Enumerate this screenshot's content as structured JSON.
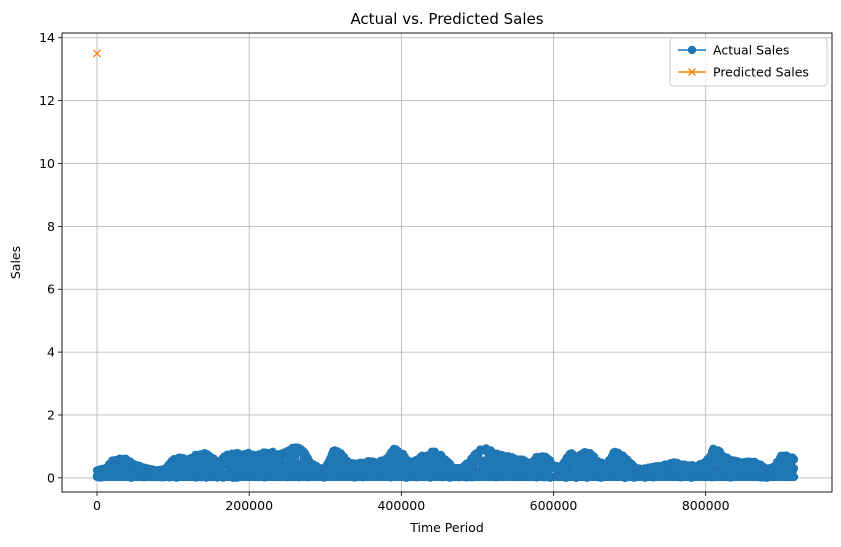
{
  "chart_data": {
    "type": "line",
    "title": "Actual vs. Predicted Sales",
    "xlabel": "Time Period",
    "ylabel": "Sales",
    "xlim": [
      -46000,
      966000
    ],
    "ylim": [
      -0.45,
      14.15
    ],
    "xticks": [
      0,
      200000,
      400000,
      600000,
      800000
    ],
    "xtick_labels": [
      "0",
      "200000",
      "400000",
      "600000",
      "800000"
    ],
    "yticks": [
      0,
      2,
      4,
      6,
      8,
      10,
      12,
      14
    ],
    "ytick_labels": [
      "0",
      "2",
      "4",
      "6",
      "8",
      "10",
      "12",
      "14"
    ],
    "grid": true,
    "legend_position": "top-right",
    "series": [
      {
        "name": "Actual Sales",
        "color": "#1f77b4",
        "marker": "circle",
        "x_range": [
          0,
          916000
        ],
        "envelope_x": [
          0,
          10000,
          20000,
          30000,
          40000,
          50000,
          60000,
          70000,
          80000,
          90000,
          100000,
          110000,
          120000,
          130000,
          140000,
          150000,
          160000,
          170000,
          180000,
          190000,
          200000,
          210000,
          220000,
          230000,
          240000,
          250000,
          260000,
          270000,
          280000,
          290000,
          300000,
          310000,
          320000,
          330000,
          340000,
          350000,
          360000,
          370000,
          380000,
          390000,
          400000,
          410000,
          420000,
          430000,
          440000,
          450000,
          460000,
          470000,
          480000,
          490000,
          500000,
          510000,
          520000,
          530000,
          540000,
          550000,
          560000,
          570000,
          580000,
          590000,
          600000,
          610000,
          620000,
          630000,
          640000,
          650000,
          660000,
          670000,
          680000,
          690000,
          700000,
          710000,
          720000,
          730000,
          740000,
          750000,
          760000,
          770000,
          780000,
          790000,
          800000,
          810000,
          820000,
          830000,
          840000,
          850000,
          860000,
          870000,
          880000,
          890000,
          900000,
          910000,
          916000
        ],
        "envelope_max": [
          0.25,
          0.3,
          0.55,
          0.65,
          0.6,
          0.45,
          0.35,
          0.3,
          0.25,
          0.3,
          0.6,
          0.65,
          0.6,
          0.75,
          0.8,
          0.7,
          0.5,
          0.75,
          0.8,
          0.8,
          0.8,
          0.7,
          0.9,
          0.85,
          0.75,
          0.85,
          1.0,
          0.95,
          0.5,
          0.35,
          0.3,
          0.9,
          0.85,
          0.5,
          0.45,
          0.5,
          0.55,
          0.5,
          0.65,
          0.95,
          0.85,
          0.5,
          0.6,
          0.75,
          0.85,
          0.8,
          0.55,
          0.3,
          0.35,
          0.55,
          0.9,
          0.95,
          0.85,
          0.75,
          0.7,
          0.65,
          0.6,
          0.45,
          0.75,
          0.75,
          0.4,
          0.35,
          0.8,
          0.75,
          0.85,
          0.8,
          0.5,
          0.45,
          0.85,
          0.8,
          0.5,
          0.3,
          0.3,
          0.35,
          0.4,
          0.45,
          0.5,
          0.45,
          0.4,
          0.4,
          0.55,
          0.95,
          0.85,
          0.6,
          0.55,
          0.5,
          0.55,
          0.45,
          0.3,
          0.35,
          0.75,
          0.7,
          0.65
        ],
        "envelope_min": 0
      },
      {
        "name": "Predicted Sales",
        "color": "#ff7f0e",
        "marker": "x",
        "points": [
          [
            0,
            13.5
          ]
        ]
      }
    ]
  }
}
